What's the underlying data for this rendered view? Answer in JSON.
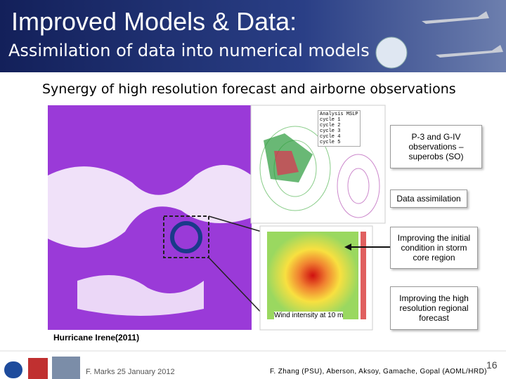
{
  "header": {
    "title": "Improved Models & Data:",
    "subtitle": "Assimilation of data into numerical models"
  },
  "subheading": "Synergy of high resolution forecast and airborne observations",
  "figure": {
    "legend": [
      "Analysis MSLP",
      "cycle 1",
      "cycle 2",
      "cycle 3",
      "cycle 4",
      "cycle 5"
    ],
    "wind_label": "Wind intensity at 10 m",
    "caption": "Hurricane Irene(2011)"
  },
  "callouts": [
    "P-3 and G-IV observations – superobs (SO)",
    "Data assimilation",
    "Improving the initial condition in storm core region",
    "Improving the high resolution regional forecast"
  ],
  "footer": {
    "author": "F. Marks 25 January 2012",
    "credits": "F. Zhang (PSU), Aberson, Aksoy, Gamache, Gopal (AOML/HRD)",
    "page": "16"
  }
}
